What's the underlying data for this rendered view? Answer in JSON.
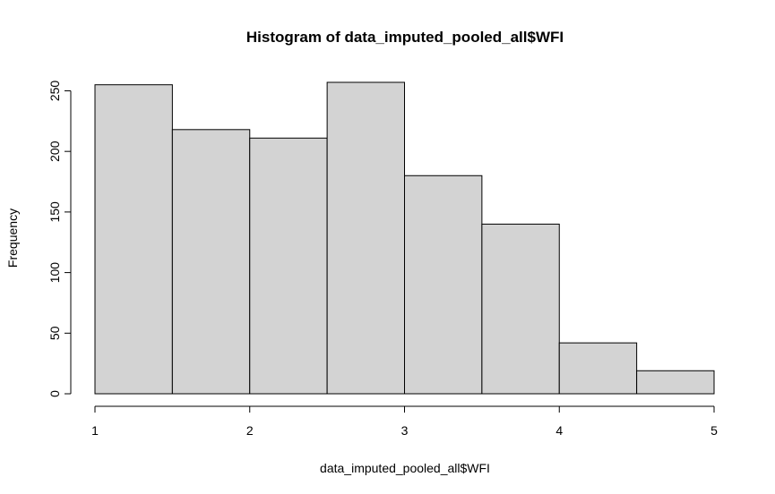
{
  "chart_data": {
    "type": "bar",
    "title": "Histogram of data_imputed_pooled_all$WFI",
    "xlabel": "data_imputed_pooled_all$WFI",
    "ylabel": "Frequency",
    "bins": [
      {
        "x0": 1.0,
        "x1": 1.5,
        "count": 255
      },
      {
        "x0": 1.5,
        "x1": 2.0,
        "count": 218
      },
      {
        "x0": 2.0,
        "x1": 2.5,
        "count": 211
      },
      {
        "x0": 2.5,
        "x1": 3.0,
        "count": 257
      },
      {
        "x0": 3.0,
        "x1": 3.5,
        "count": 180
      },
      {
        "x0": 3.5,
        "x1": 4.0,
        "count": 140
      },
      {
        "x0": 4.0,
        "x1": 4.5,
        "count": 42
      },
      {
        "x0": 4.5,
        "x1": 5.0,
        "count": 19
      }
    ],
    "xlim": [
      1,
      5
    ],
    "ylim": [
      0,
      257
    ],
    "xticks": [
      1,
      2,
      3,
      4,
      5
    ],
    "yticks": [
      0,
      50,
      100,
      150,
      200,
      250
    ],
    "bar_color": "#d3d3d3",
    "grid": false
  }
}
